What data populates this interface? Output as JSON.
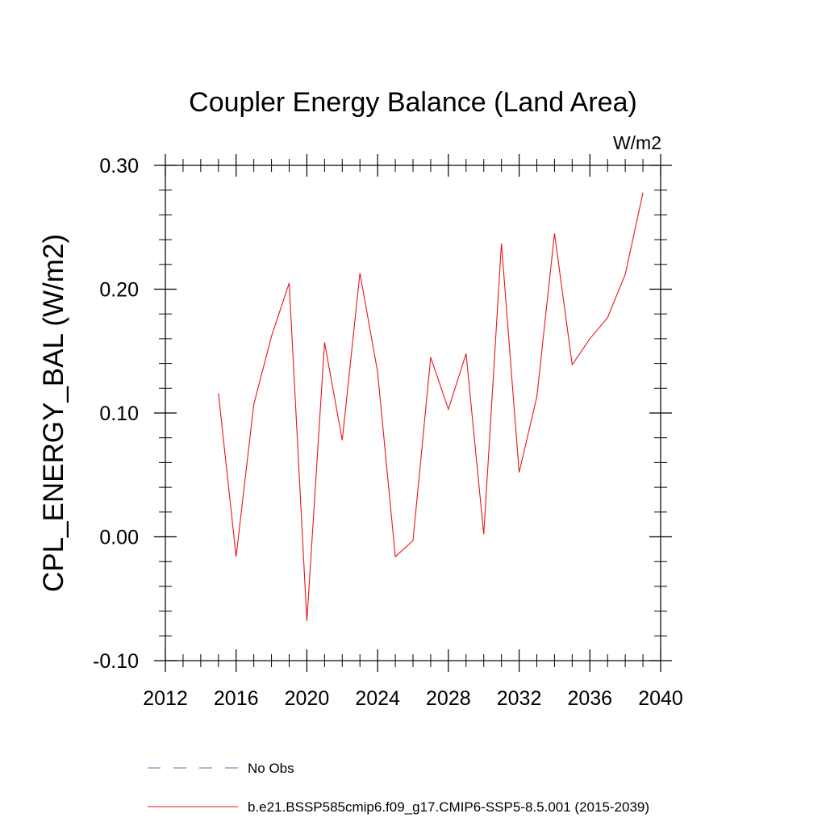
{
  "chart_data": {
    "type": "line",
    "title": "Coupler Energy Balance (Land Area)",
    "units": "W/m2",
    "xlabel": "",
    "ylabel": "CPL_ENERGY_BAL  (W/m2)",
    "xlim": [
      2012,
      2040
    ],
    "ylim": [
      -0.1,
      0.3
    ],
    "xticks": [
      2012,
      2016,
      2020,
      2024,
      2028,
      2032,
      2036,
      2040
    ],
    "xtick_labels": [
      "2012",
      "2016",
      "2020",
      "2024",
      "2028",
      "2032",
      "2036",
      "2040"
    ],
    "xminor_step": 1,
    "yticks": [
      -0.1,
      0.0,
      0.1,
      0.2,
      0.3
    ],
    "ytick_labels": [
      "-0.10",
      "0.00",
      "0.10",
      "0.20",
      "0.30"
    ],
    "yminor_step": 0.02,
    "grid": false,
    "legend_position": "bottom",
    "series": [
      {
        "name": "b.e21.BSSP585cmip6.f09_g17.CMIP6-SSP5-8.5.001 (2015-2039)",
        "color": "#e8141b",
        "style": "solid",
        "x": [
          2015,
          2016,
          2017,
          2018,
          2019,
          2020,
          2021,
          2022,
          2023,
          2024,
          2025,
          2026,
          2027,
          2028,
          2029,
          2030,
          2031,
          2032,
          2033,
          2034,
          2035,
          2036,
          2037,
          2038,
          2039
        ],
        "values": [
          0.116,
          -0.016,
          0.107,
          0.162,
          0.205,
          -0.068,
          0.157,
          0.078,
          0.213,
          0.133,
          -0.016,
          -0.003,
          0.145,
          0.103,
          0.148,
          0.002,
          0.237,
          0.052,
          0.113,
          0.245,
          0.139,
          0.16,
          0.177,
          0.212,
          0.278
        ]
      }
    ],
    "legend": [
      {
        "label": "No Obs",
        "color": "#6b63b5",
        "style": "dashed"
      },
      {
        "label": "b.e21.BSSP585cmip6.f09_g17.CMIP6-SSP5-8.5.001 (2015-2039)",
        "color": "#e8141b",
        "style": "solid"
      }
    ]
  }
}
